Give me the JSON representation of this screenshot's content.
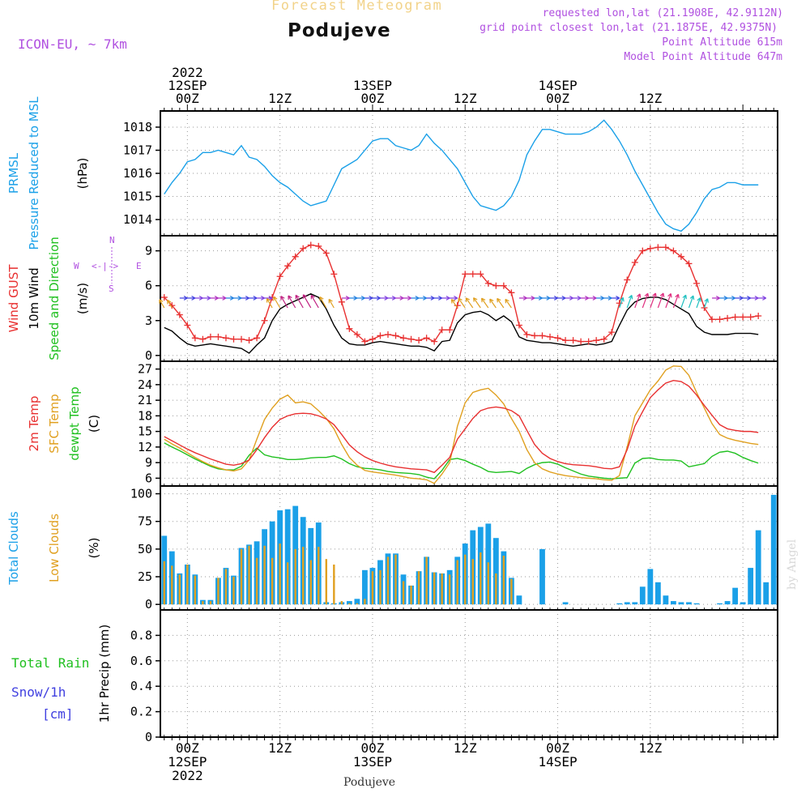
{
  "header": {
    "title_top": "Forecast Meteogram",
    "location": "Podujeve",
    "model": "ICON-EU, ~ 7km",
    "requested": "requested lon,lat (21.1908E, 42.9112N)",
    "grid_point": "grid point closest lon,lat (21.1875E, 42.9375N)",
    "point_altitude": "Point Altitude 615m",
    "model_altitude": "Model Point Altitude 647m",
    "footer_location": "Podujeve",
    "credit": "by Angel"
  },
  "time_axis": {
    "top_labels": [
      {
        "x": 0,
        "lines": [
          "2022",
          "12SEP",
          "00Z"
        ]
      },
      {
        "x": 12,
        "lines": [
          "12Z"
        ]
      },
      {
        "x": 24,
        "lines": [
          "13SEP",
          "00Z"
        ]
      },
      {
        "x": 36,
        "lines": [
          "12Z"
        ]
      },
      {
        "x": 48,
        "lines": [
          "14SEP",
          "00Z"
        ]
      },
      {
        "x": 60,
        "lines": [
          "12Z"
        ]
      }
    ],
    "bottom_labels": [
      {
        "x": 0,
        "lines": [
          "00Z",
          "12SEP",
          "2022"
        ]
      },
      {
        "x": 12,
        "lines": [
          "12Z"
        ]
      },
      {
        "x": 24,
        "lines": [
          "00Z",
          "13SEP"
        ]
      },
      {
        "x": 36,
        "lines": [
          "12Z"
        ]
      },
      {
        "x": 48,
        "lines": [
          "00Z",
          "14SEP"
        ]
      },
      {
        "x": 60,
        "lines": [
          "12Z"
        ]
      }
    ]
  },
  "panel_labels": {
    "pressure": [
      {
        "text": "PRMSL",
        "color": "#1aa0e8"
      },
      {
        "text": "Pressure Reduced to MSL",
        "color": "#1aa0e8"
      },
      {
        "text": "(hPa)",
        "color": "#000000"
      }
    ],
    "wind": [
      {
        "text": "Wind GUST",
        "color": "#e83030"
      },
      {
        "text": "10m Wind",
        "color": "#000000"
      },
      {
        "text": "Speed and Direction",
        "color": "#20c020"
      },
      {
        "text": "(m/s)",
        "color": "#000000"
      }
    ],
    "compass": {
      "n": "N",
      "s": "S",
      "e": "E",
      "w": "W",
      "glyph": "<-|->"
    },
    "temp": [
      {
        "text": "2m Temp",
        "color": "#e83030"
      },
      {
        "text": "SFC Temp",
        "color": "#e0a020"
      },
      {
        "text": "dewpt Temp",
        "color": "#20c020"
      },
      {
        "text": "(C)",
        "color": "#000000"
      }
    ],
    "clouds": [
      {
        "text": "Total Clouds",
        "color": "#1aa0e8"
      },
      {
        "text": "Low Clouds",
        "color": "#e0a020"
      },
      {
        "text": "(%)",
        "color": "#000000"
      }
    ],
    "precip_left": [
      {
        "text": "Total  Rain",
        "color": "#20c020"
      },
      {
        "text": "Snow/1h",
        "color": "#4040e0"
      },
      {
        "text": "[cm]",
        "color": "#4040e0"
      }
    ],
    "precip_axis": {
      "text": "1hr Precip (mm)",
      "color": "#000000"
    }
  },
  "colors": {
    "pressure": "#1aa0e8",
    "gust": "#e83030",
    "wind": "#000000",
    "temp2m": "#e83030",
    "sfc": "#e0a020",
    "dewpt": "#20c020",
    "total_clouds": "#1aa0e8",
    "low_clouds": "#e0a020",
    "model_label": "#b050e0"
  },
  "chart_data": [
    {
      "type": "line",
      "name": "pressure",
      "x_unit": "hours from 12SEP 00Z",
      "ylim": [
        1013.3,
        1018.7
      ],
      "yticks": [
        1014,
        1015,
        1016,
        1017,
        1018
      ],
      "x": [
        -3,
        -2,
        -1,
        0,
        1,
        2,
        3,
        4,
        5,
        6,
        7,
        8,
        9,
        10,
        11,
        12,
        13,
        14,
        15,
        16,
        17,
        18,
        19,
        20,
        21,
        22,
        23,
        24,
        25,
        26,
        27,
        28,
        29,
        30,
        31,
        32,
        33,
        34,
        35,
        36,
        37,
        38,
        39,
        40,
        41,
        42,
        43,
        44,
        45,
        46,
        47,
        48,
        49,
        50,
        51,
        52,
        53,
        54,
        55,
        56,
        57,
        58,
        59,
        60,
        61,
        62,
        63,
        64,
        65,
        66,
        67,
        68,
        69,
        70,
        71,
        72,
        73,
        74
      ],
      "series": [
        {
          "values": [
            1015.1,
            1015.6,
            1016.0,
            1016.5,
            1016.6,
            1016.9,
            1016.9,
            1017.0,
            1016.9,
            1016.8,
            1017.2,
            1016.7,
            1016.6,
            1016.3,
            1015.9,
            1015.6,
            1015.4,
            1015.1,
            1014.8,
            1014.6,
            1014.7,
            1014.8,
            1015.5,
            1016.2,
            1016.4,
            1016.6,
            1017.0,
            1017.4,
            1017.5,
            1017.5,
            1017.2,
            1017.1,
            1017.0,
            1017.2,
            1017.7,
            1017.3,
            1017.0,
            1016.6,
            1016.2,
            1015.6,
            1015.0,
            1014.6,
            1014.5,
            1014.4,
            1014.6,
            1015.0,
            1015.7,
            1016.8,
            1017.4,
            1017.9,
            1017.9,
            1017.8,
            1017.7,
            1017.7,
            1017.7,
            1017.8,
            1018.0,
            1018.3,
            1017.9,
            1017.4,
            1016.8,
            1016.1,
            1015.5,
            1014.9,
            1014.3,
            1013.8,
            1013.6,
            1013.5,
            1013.8,
            1014.3,
            1014.9,
            1015.3,
            1015.4,
            1015.6,
            1015.6,
            1015.5,
            1015.5,
            1015.5
          ]
        }
      ]
    },
    {
      "type": "line",
      "name": "wind",
      "ylim": [
        -0.5,
        10.3
      ],
      "yticks": [
        0,
        3,
        6,
        9
      ],
      "series": [
        {
          "name": "Wind GUST",
          "values": [
            5.0,
            4.3,
            3.5,
            2.6,
            1.5,
            1.4,
            1.6,
            1.6,
            1.5,
            1.4,
            1.4,
            1.3,
            1.5,
            3.0,
            5.0,
            6.8,
            7.7,
            8.5,
            9.2,
            9.5,
            9.4,
            8.8,
            7.0,
            4.6,
            2.3,
            1.8,
            1.2,
            1.4,
            1.7,
            1.8,
            1.7,
            1.5,
            1.4,
            1.3,
            1.5,
            1.2,
            2.2,
            2.2,
            4.3,
            7.0,
            7.0,
            7.0,
            6.2,
            6.0,
            6.0,
            5.4,
            2.6,
            1.8,
            1.7,
            1.7,
            1.6,
            1.5,
            1.3,
            1.3,
            1.2,
            1.2,
            1.3,
            1.4,
            2.0,
            4.5,
            6.5,
            8.0,
            9.0,
            9.2,
            9.3,
            9.3,
            9.0,
            8.5,
            7.9,
            6.2,
            4.1,
            3.1,
            3.1,
            3.2,
            3.3,
            3.3,
            3.3,
            3.4
          ]
        },
        {
          "name": "10m Wind",
          "values": [
            2.4,
            2.1,
            1.5,
            1.0,
            0.8,
            0.9,
            1.0,
            0.9,
            0.8,
            0.7,
            0.6,
            0.2,
            0.9,
            1.5,
            3.0,
            4.0,
            4.4,
            4.7,
            5.0,
            5.3,
            5.0,
            4.0,
            2.6,
            1.5,
            1.0,
            0.9,
            0.9,
            1.1,
            1.2,
            1.1,
            1.0,
            0.9,
            0.8,
            0.8,
            0.7,
            0.4,
            1.2,
            1.3,
            2.8,
            3.5,
            3.7,
            3.8,
            3.5,
            3.0,
            3.4,
            2.9,
            1.6,
            1.3,
            1.2,
            1.1,
            1.1,
            1.0,
            0.9,
            0.8,
            0.9,
            1.0,
            0.9,
            1.0,
            1.2,
            2.6,
            3.9,
            4.6,
            4.9,
            5.0,
            5.0,
            4.8,
            4.4,
            4.0,
            3.6,
            2.5,
            2.0,
            1.8,
            1.8,
            1.8,
            1.9,
            1.9,
            1.9,
            1.8
          ]
        }
      ]
    },
    {
      "type": "line",
      "name": "temperature",
      "ylim": [
        4.5,
        28.5
      ],
      "yticks": [
        6,
        9,
        12,
        15,
        18,
        21,
        24,
        27
      ],
      "series": [
        {
          "name": "2m Temp",
          "values": [
            14.0,
            13.2,
            12.4,
            11.6,
            10.9,
            10.3,
            9.7,
            9.2,
            8.7,
            8.5,
            8.8,
            9.5,
            11.5,
            13.8,
            15.8,
            17.3,
            18.0,
            18.4,
            18.5,
            18.4,
            18.0,
            17.4,
            16.3,
            14.4,
            12.4,
            11.1,
            10.1,
            9.4,
            8.9,
            8.5,
            8.2,
            8.0,
            7.8,
            7.7,
            7.6,
            7.1,
            8.5,
            10.0,
            13.5,
            15.5,
            17.5,
            19.0,
            19.5,
            19.7,
            19.5,
            19.0,
            18.0,
            15.2,
            12.5,
            10.8,
            9.8,
            9.2,
            8.8,
            8.6,
            8.5,
            8.4,
            8.2,
            7.9,
            7.8,
            8.2,
            11.5,
            16.0,
            18.8,
            21.5,
            23.0,
            24.3,
            24.8,
            24.6,
            23.7,
            22.0,
            20.0,
            18.1,
            16.3,
            15.5,
            15.2,
            15.0,
            15.0,
            14.8
          ]
        },
        {
          "name": "SFC Temp",
          "values": [
            13.5,
            12.6,
            11.8,
            10.9,
            10.0,
            9.2,
            8.5,
            8.0,
            7.6,
            7.4,
            7.8,
            9.5,
            13.5,
            17.3,
            19.5,
            21.2,
            22.0,
            20.5,
            20.7,
            20.3,
            19.0,
            17.5,
            15.5,
            12.5,
            10.0,
            8.5,
            7.5,
            7.2,
            7.0,
            6.8,
            6.6,
            6.3,
            6.0,
            5.9,
            5.7,
            5.0,
            6.8,
            9.0,
            16.0,
            20.5,
            22.5,
            23.0,
            23.3,
            22.0,
            20.3,
            17.5,
            15.0,
            11.5,
            9.0,
            7.8,
            7.2,
            6.8,
            6.5,
            6.3,
            6.1,
            6.0,
            5.9,
            5.7,
            5.6,
            6.5,
            12.0,
            18.0,
            20.5,
            23.0,
            24.7,
            26.8,
            27.6,
            27.5,
            25.8,
            22.5,
            19.5,
            16.5,
            14.4,
            13.7,
            13.3,
            13.0,
            12.7,
            12.5
          ]
        },
        {
          "name": "dewpt Temp",
          "values": [
            12.8,
            12.0,
            11.3,
            10.5,
            9.7,
            9.0,
            8.3,
            7.8,
            7.6,
            7.6,
            8.3,
            10.4,
            11.8,
            10.5,
            10.1,
            9.9,
            9.6,
            9.6,
            9.7,
            9.9,
            10.0,
            10.0,
            10.3,
            9.7,
            8.8,
            8.2,
            7.9,
            7.8,
            7.6,
            7.3,
            7.1,
            7.0,
            6.9,
            6.7,
            6.2,
            5.9,
            7.5,
            9.6,
            9.8,
            9.4,
            8.7,
            8.1,
            7.3,
            7.1,
            7.2,
            7.3,
            6.9,
            7.9,
            8.6,
            9.0,
            9.1,
            8.7,
            8.0,
            7.4,
            6.8,
            6.4,
            6.2,
            6.0,
            5.9,
            6.0,
            6.1,
            8.9,
            9.8,
            9.9,
            9.6,
            9.5,
            9.5,
            9.3,
            8.2,
            8.5,
            8.8,
            10.2,
            11.0,
            11.2,
            10.8,
            10.0,
            9.4,
            8.9
          ]
        }
      ]
    },
    {
      "type": "bar",
      "name": "clouds",
      "ylim": [
        -5,
        107
      ],
      "yticks": [
        0,
        25,
        50,
        75,
        100
      ],
      "series": [
        {
          "name": "Total Clouds",
          "values": [
            62,
            48,
            28,
            36,
            27,
            4,
            4,
            24,
            33,
            26,
            51,
            54,
            57,
            68,
            75,
            85,
            86,
            89,
            79,
            69,
            74,
            2,
            1,
            2,
            3,
            5,
            31,
            33,
            40,
            46,
            46,
            27,
            17,
            30,
            43,
            29,
            28,
            31,
            43,
            55,
            67,
            70,
            73,
            60,
            48,
            24,
            8,
            0,
            0,
            50,
            0,
            0,
            2,
            0,
            0,
            0,
            0,
            0,
            0,
            1,
            2,
            2,
            16,
            32,
            20,
            8,
            3,
            2,
            2,
            1,
            0,
            0,
            1,
            3,
            15,
            2,
            33,
            67,
            20,
            99
          ]
        },
        {
          "name": "Low Clouds",
          "values": [
            39,
            35,
            27,
            36,
            26,
            3,
            3,
            24,
            32,
            25,
            50,
            53,
            42,
            53,
            42,
            55,
            38,
            50,
            52,
            40,
            52,
            41,
            36,
            3,
            1,
            1,
            5,
            30,
            31,
            43,
            45,
            21,
            17,
            30,
            43,
            29,
            28,
            27,
            40,
            45,
            41,
            47,
            38,
            28,
            44,
            23,
            0,
            0,
            0,
            0,
            0,
            0,
            0,
            0,
            0,
            0,
            0,
            0,
            0,
            0,
            0,
            0,
            0,
            0,
            0,
            0,
            0,
            0,
            0,
            0,
            0,
            0,
            0,
            0,
            0,
            0,
            0,
            0,
            0,
            0
          ]
        }
      ]
    },
    {
      "type": "bar",
      "name": "precipitation",
      "ylim": [
        0,
        1.0
      ],
      "yticks": [
        0,
        0.2,
        0.4,
        0.6,
        0.8
      ],
      "series": [
        {
          "name": "Total Rain",
          "values": []
        }
      ]
    }
  ]
}
